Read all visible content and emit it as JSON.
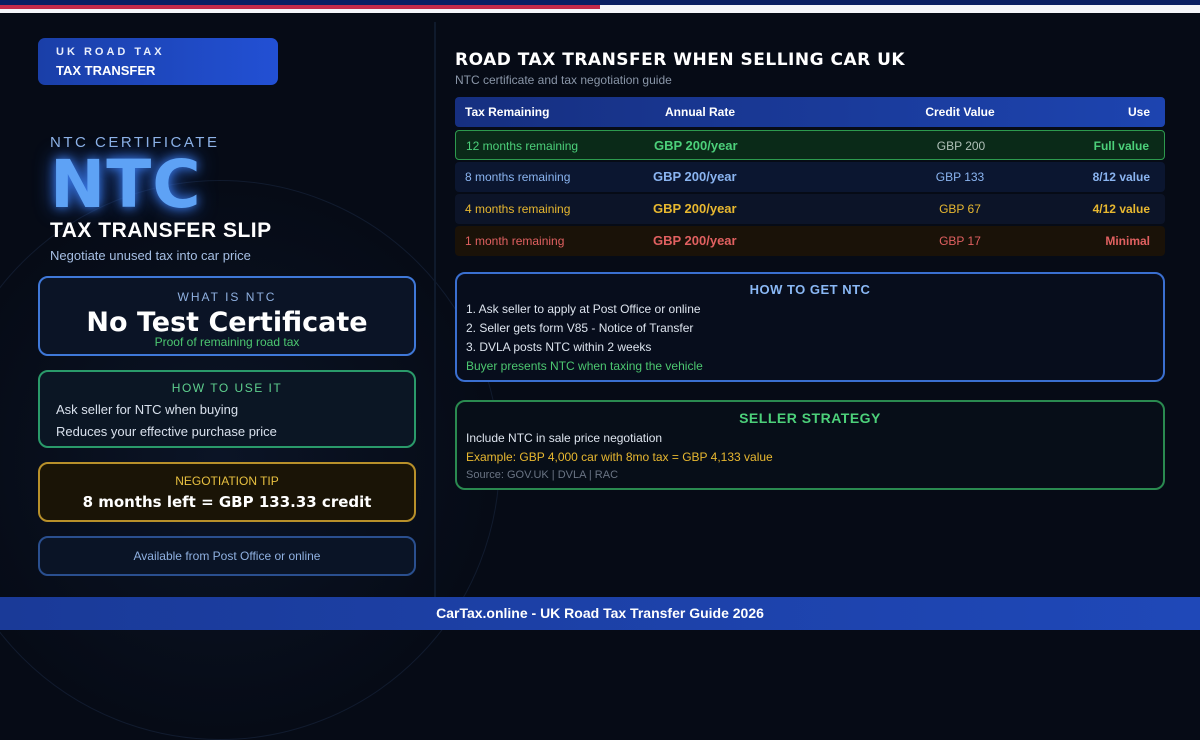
{
  "badge": {
    "line1": "UK ROAD TAX",
    "line2": "TAX TRANSFER"
  },
  "hero": {
    "eyebrow": "NTC CERTIFICATE",
    "big": "NTC",
    "title": "TAX TRANSFER SLIP",
    "subtitle": "Negotiate unused tax into car price"
  },
  "what": {
    "heading": "WHAT IS NTC",
    "title": "No Test Certificate",
    "note": "Proof of remaining road tax"
  },
  "howuse": {
    "heading": "HOW TO USE IT",
    "items": [
      "Ask seller for NTC when buying",
      "Reduces your effective purchase price"
    ]
  },
  "tip": {
    "heading": "NEGOTIATION TIP",
    "text": "8 months left = GBP 133.33 credit"
  },
  "avail": "Available from Post Office or online",
  "main": {
    "title": "ROAD TAX TRANSFER WHEN SELLING CAR UK",
    "subtitle": "NTC certificate and tax negotiation guide"
  },
  "table": {
    "headers": [
      "Tax Remaining",
      "Annual Rate",
      "Credit Value",
      "Use"
    ],
    "rows": [
      [
        "12 months remaining",
        "GBP 200/year",
        "GBP 200",
        "Full value"
      ],
      [
        "8 months remaining",
        "GBP 200/year",
        "GBP 133",
        "8/12 value"
      ],
      [
        "4 months remaining",
        "GBP 200/year",
        "GBP 67",
        "4/12 value"
      ],
      [
        "1 month remaining",
        "GBP 200/year",
        "GBP 17",
        "Minimal"
      ]
    ]
  },
  "howget": {
    "heading": "HOW TO GET NTC",
    "steps": [
      "1. Ask seller to apply at Post Office or online",
      "2. Seller gets form V85 - Notice of Transfer",
      "3. DVLA posts NTC within 2 weeks"
    ],
    "note": "Buyer presents NTC when taxing the vehicle"
  },
  "seller": {
    "heading": "SELLER STRATEGY",
    "text": "Include NTC in sale price negotiation",
    "example": "Example: GBP 4,000 car with 8mo tax = GBP 4,133 value",
    "source": "Source: GOV.UK | DVLA | RAC"
  },
  "footer": "CarTax.online - UK Road Tax Transfer Guide 2026",
  "colors": {
    "accent": "#5ea2f5",
    "green": "#4cd07a",
    "amber": "#e8b830",
    "red": "#e06060",
    "footer": "#1f48b8"
  }
}
